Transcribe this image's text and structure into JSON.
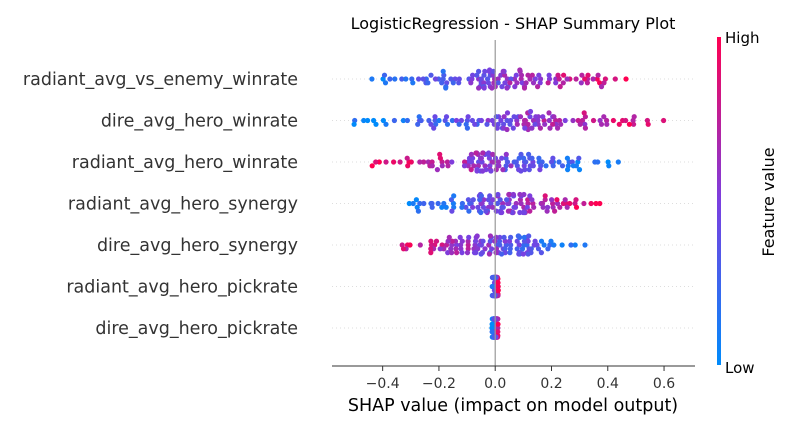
{
  "chart_data": {
    "type": "scatter",
    "title": "LogisticRegression - SHAP Summary Plot",
    "xlabel": "SHAP value (impact on model output)",
    "ylabel": "",
    "xlim": [
      -0.58,
      0.71
    ],
    "xticks": [
      "−0.4",
      "−0.2",
      "0.0",
      "0.2",
      "0.4",
      "0.6"
    ],
    "xtick_values": [
      -0.4,
      -0.2,
      0.0,
      0.2,
      0.4,
      0.6
    ],
    "grid": false,
    "colorbar": {
      "label": "Feature value",
      "high": "High",
      "low": "Low",
      "low_color": "#008bfb",
      "high_color": "#ff0051"
    },
    "features": [
      {
        "name": "radiant_avg_vs_enemy_winrate",
        "xmin": -0.53,
        "xmax": 0.55,
        "trend": 1
      },
      {
        "name": "dire_avg_hero_winrate",
        "xmin": -0.53,
        "xmax": 0.63,
        "trend": 1
      },
      {
        "name": "radiant_avg_hero_winrate",
        "xmin": -0.44,
        "xmax": 0.45,
        "trend": -1
      },
      {
        "name": "radiant_avg_hero_synergy",
        "xmin": -0.34,
        "xmax": 0.39,
        "trend": 1
      },
      {
        "name": "dire_avg_hero_synergy",
        "xmin": -0.43,
        "xmax": 0.38,
        "trend": -1
      },
      {
        "name": "radiant_avg_hero_pickrate",
        "xmin": -0.012,
        "xmax": 0.012,
        "trend": 1
      },
      {
        "name": "dire_avg_hero_pickrate",
        "xmin": -0.012,
        "xmax": 0.012,
        "trend": 1
      }
    ],
    "points_per_feature": 120
  }
}
